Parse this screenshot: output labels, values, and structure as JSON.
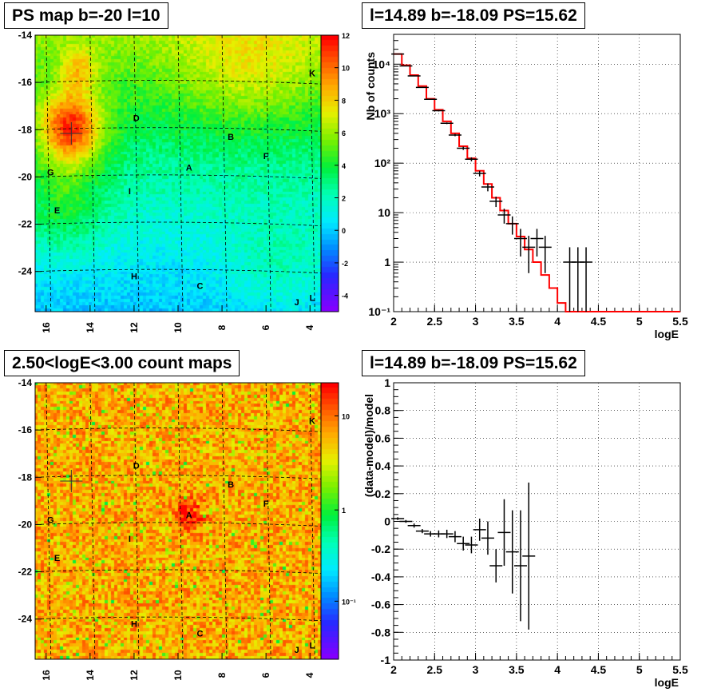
{
  "panels": {
    "ps_map": {
      "title": "PS map b=-20 l=10",
      "x_ticks": [
        "16",
        "14",
        "12",
        "10",
        "8",
        "6",
        "4"
      ],
      "y_ticks": [
        "-14",
        "-16",
        "-18",
        "-20",
        "-22",
        "-24"
      ],
      "colorbar_ticks": [
        "12",
        "10",
        "8",
        "6",
        "4",
        "2",
        "0",
        "-2",
        "-4"
      ],
      "colorbar_range": [
        -5,
        12
      ],
      "sources": [
        "K",
        "D",
        "B",
        "F",
        "A",
        "G",
        "I",
        "E",
        "H",
        "C",
        "J",
        "L"
      ]
    },
    "count_map": {
      "title": "2.50<logE<3.00 count maps",
      "x_ticks": [
        "16",
        "14",
        "12",
        "10",
        "8",
        "6",
        "4"
      ],
      "y_ticks": [
        "-14",
        "-16",
        "-18",
        "-20",
        "-22",
        "-24"
      ],
      "colorbar_ticks": [
        "10",
        "1",
        "10⁻¹"
      ],
      "colorbar_scale": "log",
      "sources": [
        "K",
        "D",
        "B",
        "F",
        "A",
        "G",
        "I",
        "E",
        "H",
        "C",
        "J",
        "L"
      ]
    },
    "spectrum": {
      "title": "l=14.89 b=-18.09 PS=15.62",
      "xlabel": "logE",
      "ylabel": "Nb of counts"
    },
    "residual": {
      "title": "l=14.89 b=-18.09 PS=15.62",
      "xlabel": "logE",
      "ylabel": "(data-model)/model"
    }
  },
  "colors": {
    "model_line": "#ff0000",
    "data_points": "#000000",
    "grid": "#000000"
  },
  "chart_data": [
    {
      "type": "heatmap",
      "title": "PS map b=-20 l=10",
      "xlim": [
        16.5,
        3.5
      ],
      "ylim": [
        -25.7,
        -14
      ],
      "description_values": "PS significance map; hot spot near l=15, b=-18",
      "sources": [
        {
          "label": "K",
          "l": 3.9,
          "b": -15.6
        },
        {
          "label": "D",
          "l": 11.9,
          "b": -17.5
        },
        {
          "label": "B",
          "l": 7.6,
          "b": -18.3
        },
        {
          "label": "F",
          "l": 6.0,
          "b": -19.1
        },
        {
          "label": "A",
          "l": 9.5,
          "b": -19.6
        },
        {
          "label": "G",
          "l": 15.8,
          "b": -19.8
        },
        {
          "label": "I",
          "l": 12.2,
          "b": -20.6
        },
        {
          "label": "E",
          "l": 15.5,
          "b": -21.4
        },
        {
          "label": "H",
          "l": 12.0,
          "b": -24.2
        },
        {
          "label": "C",
          "l": 9.0,
          "b": -24.6
        },
        {
          "label": "J",
          "l": 4.6,
          "b": -25.3
        },
        {
          "label": "L",
          "l": 3.9,
          "b": -25.1
        }
      ],
      "colorbar_range": [
        -5,
        12
      ]
    },
    {
      "type": "heatmap",
      "title": "2.50<logE<3.00 count maps",
      "xlim": [
        16.5,
        3.5
      ],
      "ylim": [
        -25.7,
        -14
      ],
      "colorbar_scale": "log"
    },
    {
      "type": "line",
      "title": "l=14.89 b=-18.09 PS=15.62",
      "xlabel": "logE",
      "ylabel": "Nb of counts",
      "xlim": [
        2,
        5.5
      ],
      "ylim": [
        0.1,
        40000
      ],
      "y_scale": "log",
      "grid": true,
      "x_ticks": [
        2,
        2.5,
        3,
        3.5,
        4,
        4.5,
        5,
        5.5
      ],
      "y_ticks": [
        "10⁻¹",
        "1",
        "10",
        "10²",
        "10³",
        "10⁴"
      ],
      "series": [
        {
          "type": "step",
          "bin_edges": [
            2.0,
            2.1,
            2.2,
            2.3,
            2.4,
            2.5,
            2.6,
            2.7,
            2.8,
            2.9,
            3.0,
            3.1,
            3.2,
            3.3,
            3.4,
            3.5,
            3.6,
            3.7,
            3.8,
            3.9,
            4.0,
            4.1,
            4.2,
            4.3,
            4.4,
            4.5,
            5.5
          ],
          "values": [
            16000,
            9500,
            6000,
            3600,
            2000,
            1200,
            700,
            400,
            220,
            125,
            70,
            38,
            20,
            11,
            6,
            3.3,
            1.8,
            1.0,
            0.55,
            0.3,
            0.15,
            0.1,
            0.1,
            0.1,
            0.1,
            0.1
          ]
        },
        {
          "type": "errorbar",
          "x": [
            2.05,
            2.15,
            2.25,
            2.35,
            2.45,
            2.55,
            2.65,
            2.75,
            2.85,
            2.95,
            3.05,
            3.15,
            3.25,
            3.35,
            3.45,
            3.55,
            3.65,
            3.75,
            3.85,
            4.15,
            4.25,
            4.35
          ],
          "y": [
            16000,
            9200,
            5800,
            3400,
            1950,
            1150,
            640,
            370,
            200,
            120,
            62,
            33,
            17,
            9,
            6,
            3,
            2,
            3,
            2,
            1,
            1,
            1
          ],
          "y_low": [
            15800,
            9100,
            5720,
            3340,
            1900,
            1110,
            615,
            350,
            185,
            109,
            54,
            27,
            13,
            6,
            3.6,
            1.3,
            0.6,
            1.3,
            0.6,
            0.1,
            0.1,
            0.1
          ],
          "y_high": [
            16200,
            9300,
            5880,
            3460,
            2000,
            1190,
            665,
            390,
            215,
            131,
            70,
            39,
            21,
            12,
            8.4,
            4.7,
            3.4,
            4.7,
            3.4,
            2.0,
            2.0,
            2.0
          ]
        }
      ]
    },
    {
      "type": "scatter",
      "title": "l=14.89 b=-18.09 PS=15.62",
      "xlabel": "logE",
      "ylabel": "(data-model)/model",
      "xlim": [
        2,
        5.5
      ],
      "ylim": [
        -1,
        1
      ],
      "grid": true,
      "x_ticks": [
        2,
        2.5,
        3,
        3.5,
        4,
        4.5,
        5,
        5.5
      ],
      "y_ticks": [
        -1,
        -0.8,
        -0.6,
        -0.4,
        -0.2,
        0,
        0.2,
        0.4,
        0.6,
        0.8,
        1
      ],
      "series": [
        {
          "type": "errorbar",
          "x": [
            2.05,
            2.15,
            2.25,
            2.35,
            2.45,
            2.55,
            2.65,
            2.75,
            2.85,
            2.95,
            3.05,
            3.15,
            3.25,
            3.35,
            3.45,
            3.55,
            3.65
          ],
          "y": [
            0.02,
            0.0,
            -0.03,
            -0.07,
            -0.09,
            -0.09,
            -0.09,
            -0.11,
            -0.16,
            -0.17,
            -0.06,
            -0.12,
            -0.32,
            -0.08,
            -0.22,
            -0.32,
            -0.25
          ],
          "yerr": [
            0.01,
            0.01,
            0.015,
            0.015,
            0.02,
            0.025,
            0.03,
            0.04,
            0.05,
            0.06,
            0.08,
            0.12,
            0.12,
            0.24,
            0.3,
            0.4,
            0.53
          ]
        }
      ]
    }
  ]
}
